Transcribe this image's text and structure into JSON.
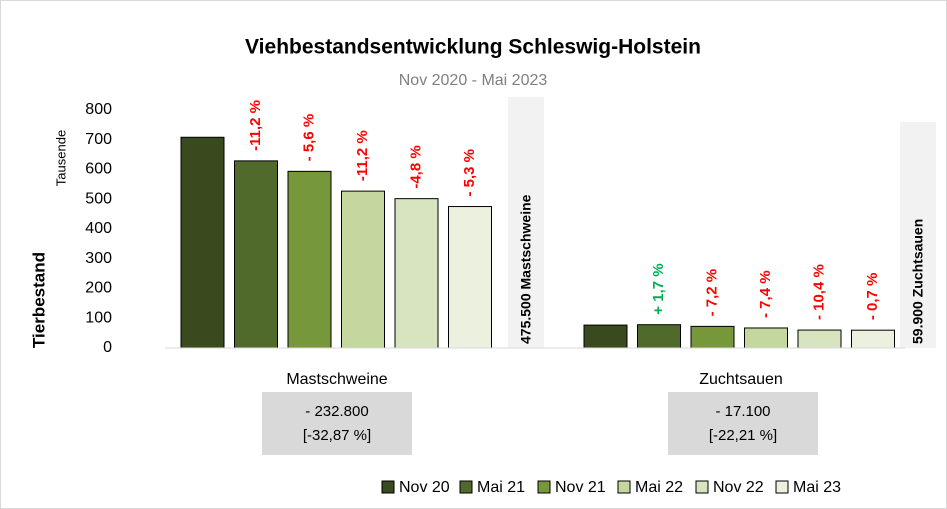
{
  "chart_data": {
    "type": "bar",
    "title": "Viehbestandsentwicklung Schleswig-Holstein",
    "subtitle": "Nov 2020 - Mai 2023",
    "y_label": "Tierbestand",
    "y_unit": "Tausende",
    "categories": [
      "Mastschweine",
      "Zuchtsauen"
    ],
    "series": [
      {
        "name": "Nov 20",
        "color": "#3a4a1f",
        "values": [
          708.3,
          77.0
        ]
      },
      {
        "name": "Mai 21",
        "color": "#4f6a2b",
        "values": [
          629.0,
          78.3
        ]
      },
      {
        "name": "Nov 21",
        "color": "#76983a",
        "values": [
          593.8,
          72.7
        ]
      },
      {
        "name": "Mai 22",
        "color": "#c4d79e",
        "values": [
          527.3,
          67.3
        ]
      },
      {
        "name": "Nov 22",
        "color": "#d8e4bf",
        "values": [
          502.0,
          60.3
        ]
      },
      {
        "name": "Mai 23",
        "color": "#ebf1de",
        "values": [
          475.5,
          59.9
        ]
      }
    ],
    "groups": [
      {
        "total_label": "475.500 Mastschweine",
        "summary": [
          "- 232.800",
          "[-32,87 %]"
        ],
        "changes": [
          {
            "label": "-11,2 %",
            "color": "#ff0000"
          },
          {
            "label": "- 5,6 %",
            "color": "#ff0000"
          },
          {
            "label": "-11,2 %",
            "color": "#ff0000"
          },
          {
            "label": "-4,8 %",
            "color": "#ff0000"
          },
          {
            "label": "- 5,3 %",
            "color": "#ff0000"
          }
        ]
      },
      {
        "total_label": "59.900 Zuchtsauen",
        "summary": [
          "- 17.100",
          "[-22,21 %]"
        ],
        "changes": [
          {
            "label": "+ 1,7 %",
            "color": "#00b050"
          },
          {
            "label": "- 7,2 %",
            "color": "#ff0000"
          },
          {
            "label": "- 7,4 %",
            "color": "#ff0000"
          },
          {
            "label": "- 10,4 %",
            "color": "#ff0000"
          },
          {
            "label": "- 0,7 %",
            "color": "#ff0000"
          }
        ]
      }
    ],
    "ylim": [
      0,
      800
    ],
    "yticks": [
      0,
      100,
      200,
      300,
      400,
      500,
      600,
      700,
      800
    ],
    "legend": "bottom"
  }
}
